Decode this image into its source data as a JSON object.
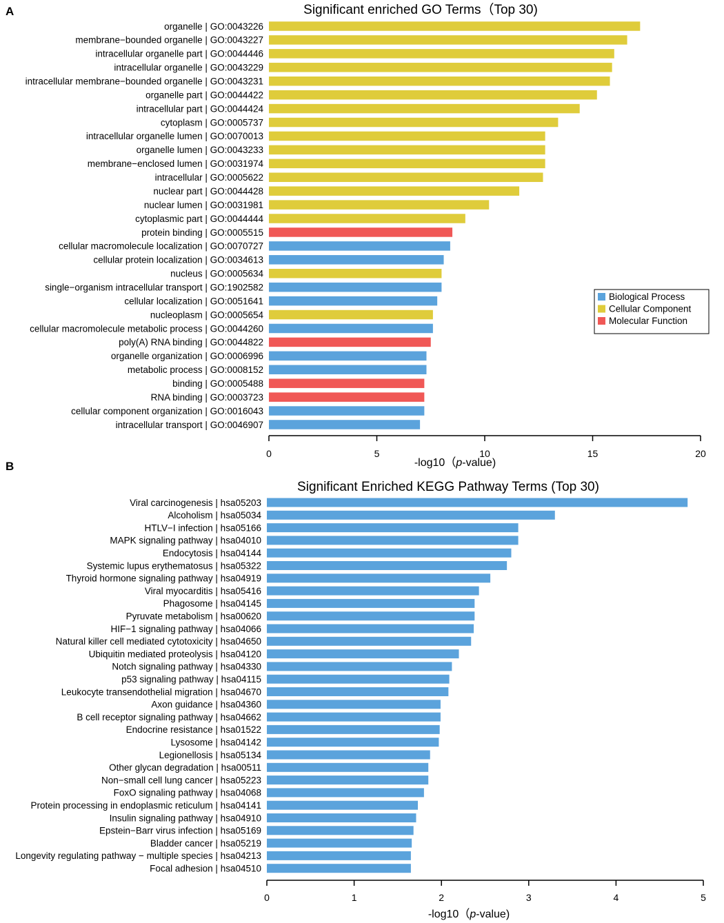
{
  "chart_data": [
    {
      "panel": "A",
      "type": "bar",
      "orientation": "horizontal",
      "title": "Significant enriched GO Terms（Top 30)",
      "xlabel_prefix": "-log10（",
      "xlabel_italic": "p",
      "xlabel_suffix": "-value)",
      "xlim": [
        0,
        20
      ],
      "xticks": [
        0,
        5,
        10,
        15,
        20
      ],
      "legend": {
        "position": "right",
        "entries": [
          {
            "name": "Biological Process",
            "color": "#5ba3dc"
          },
          {
            "name": "Cellular Component",
            "color": "#dfcc3b"
          },
          {
            "name": "Molecular Function",
            "color": "#f05856"
          }
        ]
      },
      "categories": [
        "organelle | GO:0043226",
        "membrane−bounded organelle | GO:0043227",
        "intracellular organelle part | GO:0044446",
        "intracellular organelle | GO:0043229",
        "intracellular membrane−bounded organelle | GO:0043231",
        "organelle part | GO:0044422",
        "intracellular part | GO:0044424",
        "cytoplasm | GO:0005737",
        "intracellular organelle lumen | GO:0070013",
        "organelle lumen | GO:0043233",
        "membrane−enclosed lumen | GO:0031974",
        "intracellular | GO:0005622",
        "nuclear part | GO:0044428",
        "nuclear lumen | GO:0031981",
        "cytoplasmic part | GO:0044444",
        "protein binding | GO:0005515",
        "cellular macromolecule localization | GO:0070727",
        "cellular protein localization | GO:0034613",
        "nucleus | GO:0005634",
        "single−organism intracellular transport | GO:1902582",
        "cellular localization | GO:0051641",
        "nucleoplasm | GO:0005654",
        "cellular macromolecule metabolic process | GO:0044260",
        "poly(A) RNA binding | GO:0044822",
        "organelle organization | GO:0006996",
        "metabolic process | GO:0008152",
        "binding | GO:0005488",
        "RNA binding | GO:0003723",
        "cellular component organization | GO:0016043",
        "intracellular transport | GO:0046907"
      ],
      "values": [
        17.2,
        16.6,
        16.0,
        15.9,
        15.8,
        15.2,
        14.4,
        13.4,
        12.8,
        12.8,
        12.8,
        12.7,
        11.6,
        10.2,
        9.1,
        8.5,
        8.4,
        8.1,
        8.0,
        8.0,
        7.8,
        7.6,
        7.6,
        7.5,
        7.3,
        7.3,
        7.2,
        7.2,
        7.2,
        7.0
      ],
      "groups": [
        "Cellular Component",
        "Cellular Component",
        "Cellular Component",
        "Cellular Component",
        "Cellular Component",
        "Cellular Component",
        "Cellular Component",
        "Cellular Component",
        "Cellular Component",
        "Cellular Component",
        "Cellular Component",
        "Cellular Component",
        "Cellular Component",
        "Cellular Component",
        "Cellular Component",
        "Molecular Function",
        "Biological Process",
        "Biological Process",
        "Cellular Component",
        "Biological Process",
        "Biological Process",
        "Cellular Component",
        "Biological Process",
        "Molecular Function",
        "Biological Process",
        "Biological Process",
        "Molecular Function",
        "Molecular Function",
        "Biological Process",
        "Biological Process"
      ]
    },
    {
      "panel": "B",
      "type": "bar",
      "orientation": "horizontal",
      "title": "Significant Enriched KEGG Pathway Terms (Top 30)",
      "xlabel_prefix": "-log10（",
      "xlabel_italic": "p",
      "xlabel_suffix": "-value)",
      "xlim": [
        0,
        5
      ],
      "xticks": [
        0,
        1,
        2,
        3,
        4,
        5
      ],
      "bar_color": "#5ba3dc",
      "categories": [
        "Viral carcinogenesis | hsa05203",
        "Alcoholism | hsa05034",
        "HTLV−I infection | hsa05166",
        "MAPK signaling pathway | hsa04010",
        "Endocytosis | hsa04144",
        "Systemic lupus erythematosus | hsa05322",
        "Thyroid hormone signaling pathway | hsa04919",
        "Viral myocarditis | hsa05416",
        "Phagosome | hsa04145",
        "Pyruvate metabolism | hsa00620",
        "HIF−1 signaling pathway | hsa04066",
        "Natural killer cell mediated cytotoxicity | hsa04650",
        "Ubiquitin mediated proteolysis | hsa04120",
        "Notch signaling pathway | hsa04330",
        "p53 signaling pathway | hsa04115",
        "Leukocyte transendothelial migration | hsa04670",
        "Axon guidance | hsa04360",
        "B cell receptor signaling pathway | hsa04662",
        "Endocrine resistance | hsa01522",
        "Lysosome | hsa04142",
        "Legionellosis | hsa05134",
        "Other glycan degradation | hsa00511",
        "Non−small cell lung cancer | hsa05223",
        "FoxO signaling pathway | hsa04068",
        "Protein processing in endoplasmic reticulum | hsa04141",
        "Insulin signaling pathway | hsa04910",
        "Epstein−Barr virus infection | hsa05169",
        "Bladder cancer | hsa05219",
        "Longevity regulating pathway − multiple species | hsa04213",
        "Focal adhesion | hsa04510"
      ],
      "values": [
        4.82,
        3.3,
        2.88,
        2.88,
        2.8,
        2.75,
        2.56,
        2.43,
        2.38,
        2.38,
        2.37,
        2.34,
        2.2,
        2.12,
        2.09,
        2.08,
        1.99,
        1.99,
        1.98,
        1.97,
        1.87,
        1.85,
        1.85,
        1.8,
        1.73,
        1.71,
        1.68,
        1.66,
        1.65,
        1.65
      ]
    }
  ]
}
